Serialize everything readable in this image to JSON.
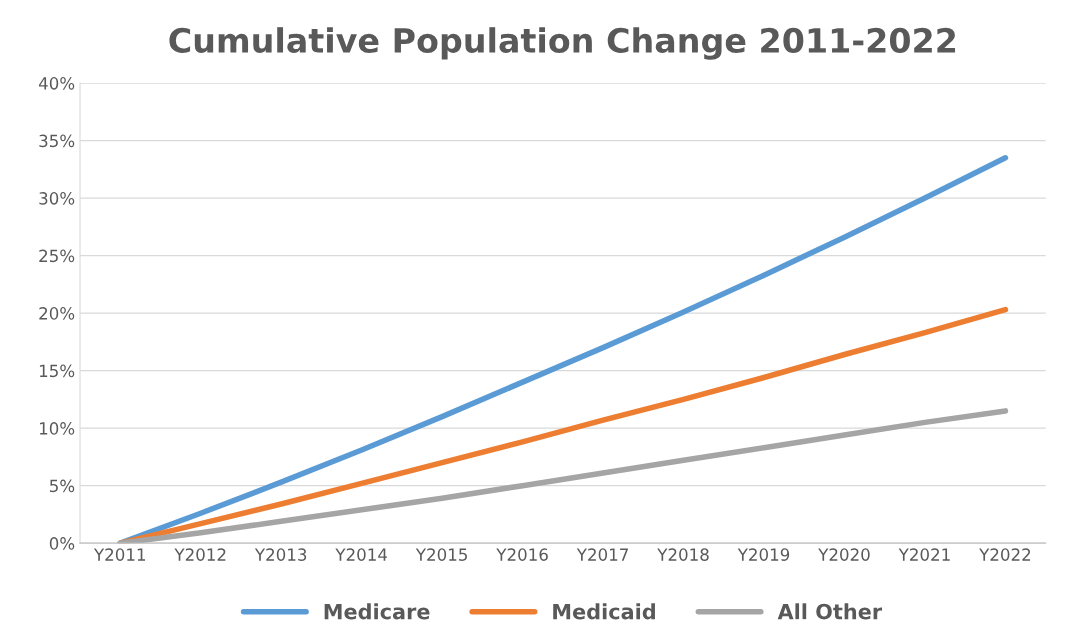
{
  "chart_data": {
    "type": "line",
    "title": "Cumulative Population Change 2011-2022",
    "categories": [
      "Y2011",
      "Y2012",
      "Y2013",
      "Y2014",
      "Y2015",
      "Y2016",
      "Y2017",
      "Y2018",
      "Y2019",
      "Y2020",
      "Y2021",
      "Y2022"
    ],
    "series": [
      {
        "name": "Medicare",
        "color": "#5b9bd5",
        "values": [
          0,
          2.6,
          5.3,
          8.1,
          11.0,
          14.0,
          17.0,
          20.1,
          23.3,
          26.6,
          30.0,
          33.5
        ]
      },
      {
        "name": "Medicaid",
        "color": "#ed7d31",
        "values": [
          0,
          1.7,
          3.4,
          5.2,
          7.0,
          8.8,
          10.7,
          12.5,
          14.4,
          16.4,
          18.3,
          20.3
        ]
      },
      {
        "name": "All Other",
        "color": "#a5a5a5",
        "values": [
          0,
          0.9,
          1.9,
          2.9,
          3.9,
          5.0,
          6.1,
          7.2,
          8.3,
          9.4,
          10.5,
          11.5
        ]
      }
    ],
    "ylim": [
      0,
      40
    ],
    "yticks": [
      {
        "value": 0,
        "label": "0%"
      },
      {
        "value": 5,
        "label": "5%"
      },
      {
        "value": 10,
        "label": "10%"
      },
      {
        "value": 15,
        "label": "15%"
      },
      {
        "value": 20,
        "label": "20%"
      },
      {
        "value": 25,
        "label": "25%"
      },
      {
        "value": 30,
        "label": "30%"
      },
      {
        "value": 35,
        "label": "35%"
      },
      {
        "value": 40,
        "label": "40%"
      }
    ],
    "grid": "y",
    "legend": "bottom",
    "line_style": "solid"
  }
}
